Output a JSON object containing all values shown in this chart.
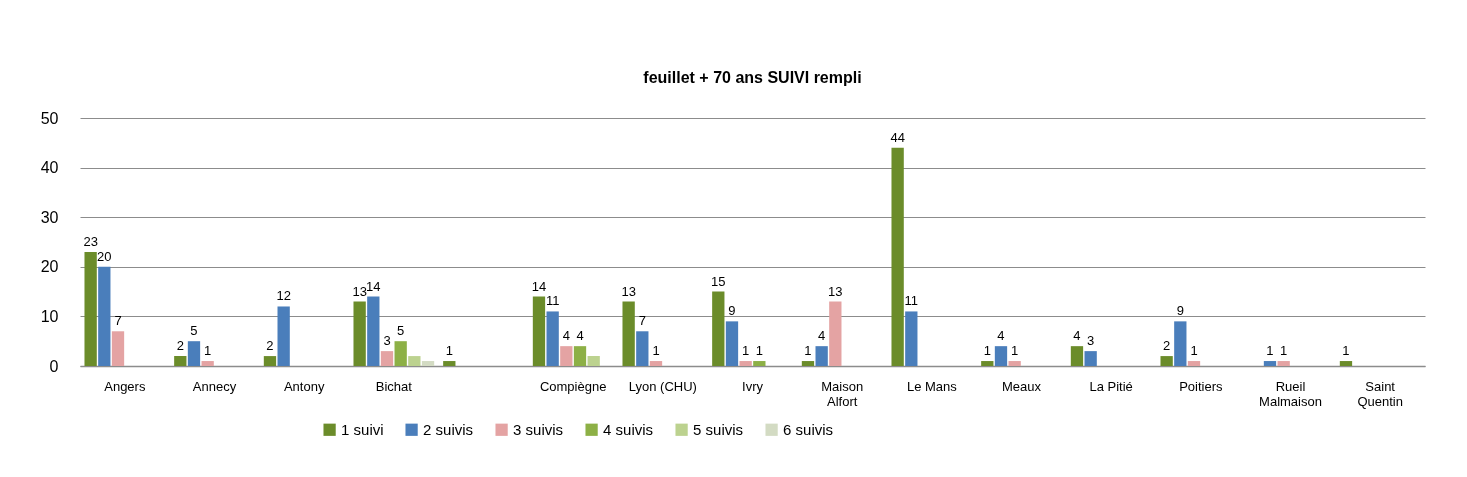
{
  "chart_data": {
    "type": "bar",
    "title": "feuillet + 70 ans SUIVI rempli",
    "categories": [
      "Angers",
      "Annecy",
      "Antony",
      "Bichat",
      null,
      "Compiègne",
      "Lyon (CHU)",
      "Ivry",
      "Maison Alfort",
      "Le Mans",
      "Meaux",
      "La Pitié",
      "Poitiers",
      "Rueil Malmaison",
      "Saint Quentin"
    ],
    "series": [
      {
        "name": "1 suivi",
        "color": "#6b8c2a",
        "values": [
          23,
          2,
          2,
          13,
          1,
          14,
          13,
          15,
          1,
          44,
          1,
          4,
          2,
          null,
          1
        ],
        "value_labels": [
          "23",
          "2",
          "2",
          "13",
          "1",
          "14",
          "13",
          "15",
          "1",
          "44",
          "1",
          "4",
          "2",
          null,
          "1"
        ]
      },
      {
        "name": "2 suivis",
        "color": "#4a7ebb",
        "values": [
          20,
          5,
          12,
          14,
          null,
          11,
          7,
          9,
          4,
          11,
          4,
          3,
          9,
          1,
          null
        ],
        "value_labels": [
          "20",
          "5",
          "12",
          "14",
          null,
          "11",
          "7",
          "9",
          "4",
          "11",
          "4",
          "3",
          "9",
          "1",
          null
        ]
      },
      {
        "name": "3 suivis",
        "color": "#e4a3a3",
        "values": [
          7,
          1,
          null,
          3,
          null,
          4,
          1,
          1,
          13,
          null,
          1,
          null,
          1,
          1,
          null
        ],
        "value_labels": [
          "7",
          "1",
          null,
          "3",
          null,
          "4",
          "1",
          "1",
          "13",
          null,
          "1",
          null,
          "1",
          "1",
          null
        ]
      },
      {
        "name": "4 suivis",
        "color": "#8db046",
        "values": [
          null,
          null,
          null,
          5,
          null,
          4,
          null,
          1,
          null,
          null,
          null,
          null,
          null,
          null,
          null
        ],
        "value_labels": [
          null,
          null,
          null,
          "5",
          null,
          "4",
          null,
          "1",
          null,
          null,
          null,
          null,
          null,
          null,
          null
        ]
      },
      {
        "name": "5 suivis",
        "color": "#bcd28f",
        "values": [
          null,
          null,
          null,
          2,
          null,
          2,
          null,
          null,
          null,
          null,
          null,
          null,
          null,
          null,
          null
        ]
      },
      {
        "name": "6 suivis",
        "color": "#d3dbc3",
        "values": [
          null,
          null,
          null,
          1,
          null,
          null,
          null,
          null,
          null,
          null,
          null,
          null,
          null,
          null,
          null
        ]
      }
    ],
    "ylim": [
      0,
      50
    ],
    "yticks": [
      0,
      10,
      20,
      30,
      40,
      50
    ],
    "grid": "y",
    "legend": "bottom"
  }
}
